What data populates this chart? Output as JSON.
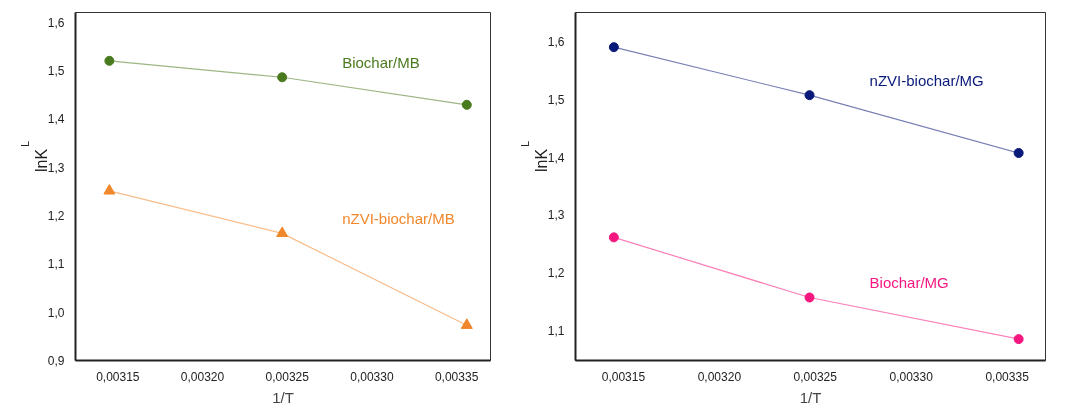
{
  "chart_data": [
    {
      "type": "line",
      "xlabel": "1/T",
      "ylabel": "lnK$_{L}$",
      "xlim": [
        0.003125,
        0.00337
      ],
      "ylim": [
        0.9,
        1.62
      ],
      "xticks": [
        {
          "value": 0.00315,
          "label": "0,00315"
        },
        {
          "value": 0.0032,
          "label": "0,00320"
        },
        {
          "value": 0.00325,
          "label": "0,00325"
        },
        {
          "value": 0.0033,
          "label": "0,00330"
        },
        {
          "value": 0.00335,
          "label": "0,00335"
        }
      ],
      "yticks": [
        {
          "value": 0.9,
          "label": "0,9"
        },
        {
          "value": 1.0,
          "label": "1,0"
        },
        {
          "value": 1.1,
          "label": "1,1"
        },
        {
          "value": 1.2,
          "label": "1,2"
        },
        {
          "value": 1.3,
          "label": "1,3"
        },
        {
          "value": 1.4,
          "label": "1,4"
        },
        {
          "value": 1.5,
          "label": "1,5"
        },
        {
          "value": 1.6,
          "label": "1,6"
        }
      ],
      "grid": false,
      "x": [
        0.003145,
        0.003247,
        0.003356
      ],
      "series": [
        {
          "name": "Biochar/MB",
          "color": "#4a7a1e",
          "marker": "circle",
          "values": [
            1.52,
            1.486,
            1.429
          ]
        },
        {
          "name": "nZVI-biochar/MB",
          "color": "#f0872a",
          "marker": "triangle",
          "values": [
            1.251,
            1.163,
            0.973
          ]
        }
      ]
    },
    {
      "type": "line",
      "xlabel": "1/T",
      "ylabel": "lnK$_{L}$",
      "xlim": [
        0.003125,
        0.00337
      ],
      "ylim": [
        1.048,
        1.65
      ],
      "xticks": [
        {
          "value": 0.00315,
          "label": "0,00315"
        },
        {
          "value": 0.0032,
          "label": "0,00320"
        },
        {
          "value": 0.00325,
          "label": "0,00325"
        },
        {
          "value": 0.0033,
          "label": "0,00330"
        },
        {
          "value": 0.00335,
          "label": "0,00335"
        }
      ],
      "yticks": [
        {
          "value": 1.1,
          "label": "1,1"
        },
        {
          "value": 1.2,
          "label": "1,2"
        },
        {
          "value": 1.3,
          "label": "1,3"
        },
        {
          "value": 1.4,
          "label": "1,4"
        },
        {
          "value": 1.5,
          "label": "1,5"
        },
        {
          "value": 1.6,
          "label": "1,6"
        }
      ],
      "grid": false,
      "x": [
        0.003145,
        0.003247,
        0.003356
      ],
      "series": [
        {
          "name": "nZVI-biochar/MG",
          "color": "#0a1a7a",
          "marker": "circle",
          "values": [
            1.59,
            1.507,
            1.407
          ]
        },
        {
          "name": "Biochar/MG",
          "color": "#f5177f",
          "marker": "circle",
          "values": [
            1.261,
            1.157,
            1.085
          ]
        }
      ]
    }
  ]
}
